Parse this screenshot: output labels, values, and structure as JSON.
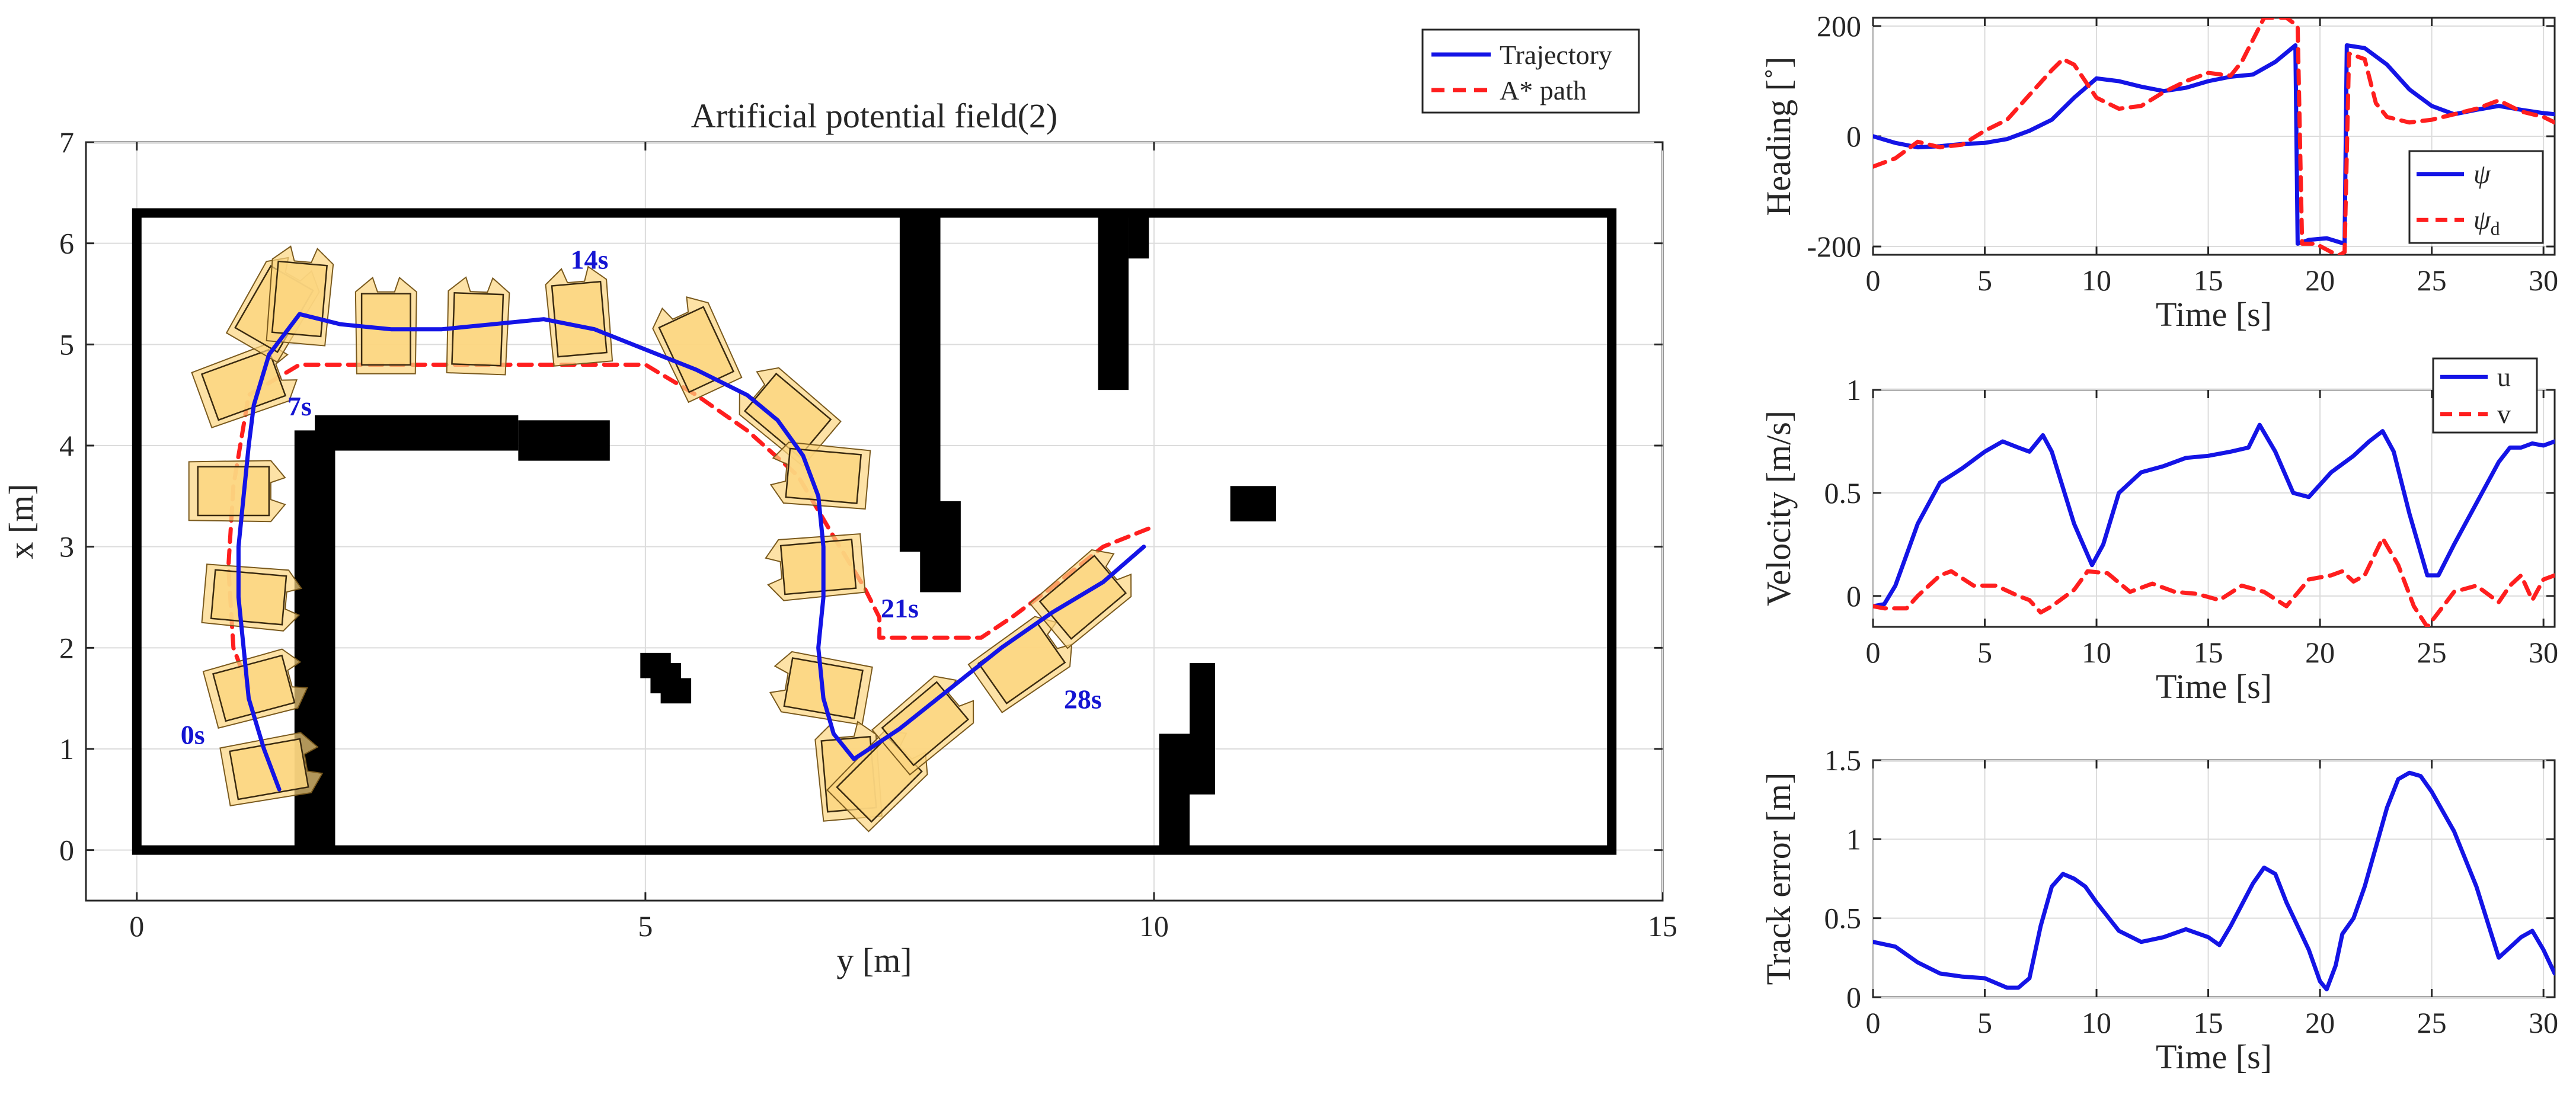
{
  "chart_data": [
    {
      "type": "map",
      "title": "Artificial potential field(2)",
      "xlabel": "y [m]",
      "ylabel": "x [m]",
      "xlim": [
        -0.5,
        15
      ],
      "ylim": [
        -0.5,
        7
      ],
      "xticks": [
        0,
        5,
        10,
        15
      ],
      "yticks": [
        0,
        1,
        2,
        3,
        4,
        5,
        6,
        7
      ],
      "grid": true,
      "legend": {
        "placement": "top-right-outside",
        "entries": [
          "Trajectory",
          "A* path"
        ]
      },
      "colors": {
        "trajectory": "#1414e6",
        "astar": "#ff1e1e",
        "obstacle": "#000000",
        "vessel_fill": "#fcd680",
        "vessel_edge": "#7a5a1e"
      },
      "boundary": {
        "y": [
          0,
          14.5
        ],
        "x": [
          0,
          6.3
        ]
      },
      "obstacles": [
        {
          "y0": 1.55,
          "y1": 1.95,
          "x0": 0,
          "x1": 4.15
        },
        {
          "y0": 1.75,
          "y1": 3.75,
          "x0": 3.95,
          "x1": 4.3
        },
        {
          "y0": 3.75,
          "y1": 4.65,
          "x0": 3.85,
          "x1": 4.25
        },
        {
          "y0": 7.5,
          "y1": 7.9,
          "x0": 2.95,
          "x1": 6.3
        },
        {
          "y0": 7.7,
          "y1": 8.1,
          "x0": 2.55,
          "x1": 3.45
        },
        {
          "y0": 9.45,
          "y1": 9.75,
          "x0": 4.55,
          "x1": 6.3
        },
        {
          "y0": 9.75,
          "y1": 9.95,
          "x0": 5.85,
          "x1": 6.3
        },
        {
          "y0": 4.95,
          "y1": 5.25,
          "x0": 1.7,
          "x1": 1.95
        },
        {
          "y0": 5.05,
          "y1": 5.35,
          "x0": 1.55,
          "x1": 1.85
        },
        {
          "y0": 5.15,
          "y1": 5.45,
          "x0": 1.45,
          "x1": 1.7
        },
        {
          "y0": 10.35,
          "y1": 10.6,
          "x0": 0.55,
          "x1": 1.85
        },
        {
          "y0": 10.05,
          "y1": 10.35,
          "x0": 0,
          "x1": 1.15
        },
        {
          "y0": 10.75,
          "y1": 11.2,
          "x0": 3.25,
          "x1": 3.6
        }
      ],
      "trajectory": {
        "y": [
          1.4,
          1.25,
          1.1,
          1.05,
          1.0,
          1.0,
          1.05,
          1.1,
          1.15,
          1.3,
          1.6,
          2.0,
          2.5,
          3.0,
          3.5,
          4.0,
          4.5,
          5.0,
          5.5,
          6.0,
          6.3,
          6.55,
          6.7,
          6.75,
          6.75,
          6.7,
          6.75,
          6.85,
          7.05,
          7.5,
          8.0,
          8.5,
          9.0,
          9.5,
          9.9
        ],
        "x": [
          0.6,
          1.0,
          1.5,
          2.0,
          2.5,
          3.0,
          3.5,
          4.0,
          4.4,
          4.9,
          5.3,
          5.2,
          5.15,
          5.15,
          5.2,
          5.25,
          5.15,
          4.95,
          4.75,
          4.5,
          4.25,
          3.9,
          3.5,
          3.0,
          2.5,
          2.0,
          1.5,
          1.15,
          0.9,
          1.2,
          1.6,
          2.0,
          2.35,
          2.65,
          3.0
        ]
      },
      "astar_path": {
        "y": [
          1.1,
          0.95,
          0.9,
          0.95,
          1.1,
          1.6,
          2.5,
          3.5,
          4.5,
          5.0,
          5.5,
          6.0,
          6.5,
          6.85,
          7.15,
          7.3,
          7.3,
          8.3,
          8.6,
          9.0,
          9.5,
          10.0
        ],
        "x": [
          1.6,
          2.0,
          2.8,
          3.6,
          4.5,
          4.8,
          4.8,
          4.8,
          4.8,
          4.8,
          4.5,
          4.15,
          3.7,
          3.1,
          2.6,
          2.3,
          2.1,
          2.1,
          2.3,
          2.6,
          3.0,
          3.2
        ]
      },
      "vessels": [
        {
          "y": 1.3,
          "x": 0.8,
          "psi": 10
        },
        {
          "y": 1.15,
          "x": 1.6,
          "psi": 15
        },
        {
          "y": 1.1,
          "x": 2.5,
          "psi": -5
        },
        {
          "y": 0.95,
          "x": 3.55,
          "psi": 0
        },
        {
          "y": 1.05,
          "x": 4.6,
          "psi": 20
        },
        {
          "y": 1.35,
          "x": 5.35,
          "psi": 60
        },
        {
          "y": 1.6,
          "x": 5.45,
          "psi": 85
        },
        {
          "y": 2.45,
          "x": 5.15,
          "psi": 90
        },
        {
          "y": 3.35,
          "x": 5.15,
          "psi": 88
        },
        {
          "y": 4.35,
          "x": 5.25,
          "psi": 95
        },
        {
          "y": 5.5,
          "x": 4.95,
          "psi": 115
        },
        {
          "y": 6.4,
          "x": 4.3,
          "psi": 140
        },
        {
          "y": 6.75,
          "x": 3.7,
          "psi": 175
        },
        {
          "y": 6.7,
          "x": 2.8,
          "psi": 185
        },
        {
          "y": 6.75,
          "x": 1.6,
          "psi": 170
        },
        {
          "y": 7.0,
          "x": 0.75,
          "psi": 95
        },
        {
          "y": 7.3,
          "x": 0.7,
          "psi": 45
        },
        {
          "y": 7.75,
          "x": 1.25,
          "psi": 40
        },
        {
          "y": 8.7,
          "x": 1.85,
          "psi": 35
        },
        {
          "y": 9.3,
          "x": 2.5,
          "psi": 40
        }
      ],
      "annotations": [
        {
          "text": "0s",
          "y": 0.55,
          "x": 1.05
        },
        {
          "text": "7s",
          "y": 1.6,
          "x": 4.3
        },
        {
          "text": "14s",
          "y": 4.45,
          "x": 5.75
        },
        {
          "text": "21s",
          "y": 7.5,
          "x": 2.3
        },
        {
          "text": "28s",
          "y": 9.3,
          "x": 1.4
        }
      ]
    },
    {
      "type": "line",
      "xlabel": "Time [s]",
      "ylabel": "Heading [˚]",
      "xlim": [
        0,
        30.5
      ],
      "ylim": [
        -215,
        215
      ],
      "xticks": [
        0,
        5,
        10,
        15,
        20,
        25,
        30
      ],
      "yticks": [
        -200,
        0,
        200
      ],
      "grid": true,
      "legend": {
        "placement": "bottom-right",
        "entries": [
          "ψ",
          "ψ_d"
        ]
      },
      "series": [
        {
          "name": "ψ",
          "color": "#1414e6",
          "style": "solid",
          "x": [
            0,
            1,
            2,
            3,
            4,
            5,
            6,
            7,
            8,
            9,
            10,
            11,
            12,
            13,
            14,
            15,
            16,
            17,
            18,
            18.9,
            19.0,
            19.5,
            20.3,
            21.1,
            21.2,
            22,
            23,
            24,
            25,
            26,
            27,
            28,
            29,
            30,
            30.5
          ],
          "y": [
            0,
            -12,
            -20,
            -18,
            -14,
            -12,
            -5,
            10,
            30,
            70,
            105,
            100,
            90,
            82,
            88,
            100,
            108,
            112,
            135,
            165,
            -195,
            -188,
            -185,
            -195,
            165,
            160,
            130,
            85,
            55,
            40,
            48,
            55,
            48,
            42,
            40
          ]
        },
        {
          "name": "ψ_d",
          "color": "#ff1e1e",
          "style": "dashed",
          "x": [
            0,
            1,
            2,
            3,
            4,
            5,
            6,
            7,
            8,
            8.5,
            9,
            10,
            11,
            12,
            13,
            14,
            15,
            16,
            16.5,
            17.5,
            18.5,
            19.0,
            19.2,
            19.8,
            20.5,
            20.9,
            21.1,
            21.3,
            22,
            22.5,
            23,
            24,
            25,
            26,
            27,
            28,
            29,
            30,
            30.5
          ],
          "y": [
            -55,
            -40,
            -10,
            -20,
            -15,
            10,
            30,
            75,
            120,
            140,
            130,
            70,
            50,
            55,
            80,
            100,
            115,
            110,
            135,
            215,
            215,
            200,
            -195,
            -195,
            -210,
            -215,
            -210,
            150,
            140,
            60,
            35,
            25,
            30,
            40,
            50,
            65,
            45,
            35,
            25
          ]
        }
      ]
    },
    {
      "type": "line",
      "xlabel": "Time [s]",
      "ylabel": "Velocity [m/s]",
      "xlim": [
        0,
        30.5
      ],
      "ylim": [
        -0.15,
        1
      ],
      "xticks": [
        0,
        5,
        10,
        15,
        20,
        25,
        30
      ],
      "yticks": [
        0,
        0.5,
        1
      ],
      "grid": true,
      "legend": {
        "placement": "top-right",
        "entries": [
          "u",
          "v"
        ]
      },
      "series": [
        {
          "name": "u",
          "color": "#1414e6",
          "style": "solid",
          "x": [
            0,
            0.5,
            1,
            1.5,
            2,
            3,
            4,
            5,
            5.8,
            6.5,
            7,
            7.6,
            8,
            9,
            9.8,
            10.3,
            11,
            12,
            13,
            14,
            15,
            16,
            16.8,
            17.3,
            18,
            18.8,
            19.5,
            20.5,
            21.5,
            22.2,
            22.8,
            23.3,
            24,
            24.8,
            25.3,
            26,
            27,
            28,
            28.5,
            29,
            29.5,
            30,
            30.5
          ],
          "y": [
            -0.05,
            -0.04,
            0.05,
            0.2,
            0.35,
            0.55,
            0.62,
            0.7,
            0.75,
            0.72,
            0.7,
            0.78,
            0.7,
            0.35,
            0.15,
            0.25,
            0.5,
            0.6,
            0.63,
            0.67,
            0.68,
            0.7,
            0.72,
            0.83,
            0.7,
            0.5,
            0.48,
            0.6,
            0.68,
            0.75,
            0.8,
            0.7,
            0.4,
            0.1,
            0.1,
            0.25,
            0.45,
            0.65,
            0.72,
            0.72,
            0.74,
            0.73,
            0.75
          ]
        },
        {
          "name": "v",
          "color": "#ff1e1e",
          "style": "dashed",
          "x": [
            0,
            0.5,
            1,
            1.5,
            2,
            3,
            3.5,
            4.5,
            5.5,
            6.5,
            7,
            7.5,
            8,
            9,
            9.6,
            10.5,
            11.5,
            12.5,
            13.5,
            14.5,
            15.5,
            16.5,
            17.5,
            18.5,
            19.5,
            20.5,
            21,
            21.5,
            22,
            22.8,
            23.5,
            24.2,
            24.8,
            25.3,
            26,
            27,
            28,
            28.5,
            29,
            29.5,
            30,
            30.5
          ],
          "y": [
            -0.05,
            -0.06,
            -0.06,
            -0.06,
            0,
            0.1,
            0.12,
            0.05,
            0.05,
            0,
            -0.02,
            -0.08,
            -0.05,
            0.03,
            0.12,
            0.11,
            0.02,
            0.06,
            0.02,
            0.01,
            -0.02,
            0.05,
            0.02,
            -0.05,
            0.08,
            0.1,
            0.12,
            0.07,
            0.1,
            0.28,
            0.15,
            -0.05,
            -0.15,
            -0.08,
            0.02,
            0.05,
            -0.03,
            0.05,
            0.1,
            -0.02,
            0.08,
            0.1
          ]
        }
      ]
    },
    {
      "type": "line",
      "xlabel": "Time [s]",
      "ylabel": "Track error [m]",
      "xlim": [
        0,
        30.5
      ],
      "ylim": [
        0,
        1.5
      ],
      "xticks": [
        0,
        5,
        10,
        15,
        20,
        25,
        30
      ],
      "yticks": [
        0,
        0.5,
        1,
        1.5
      ],
      "grid": true,
      "series": [
        {
          "name": "",
          "color": "#1414e6",
          "style": "solid",
          "x": [
            0,
            1,
            2,
            3,
            4,
            5,
            6,
            6.5,
            7,
            7.5,
            8,
            8.5,
            9,
            9.5,
            10,
            11,
            12,
            13,
            14,
            15,
            15.5,
            16,
            17,
            17.5,
            18,
            18.5,
            19,
            19.5,
            20,
            20.3,
            20.7,
            21,
            21.5,
            22,
            22.5,
            23,
            23.5,
            24,
            24.5,
            25,
            26,
            27,
            28,
            29,
            29.5,
            30,
            30.5
          ],
          "y": [
            0.35,
            0.32,
            0.22,
            0.15,
            0.13,
            0.12,
            0.06,
            0.06,
            0.12,
            0.45,
            0.7,
            0.78,
            0.75,
            0.7,
            0.6,
            0.42,
            0.35,
            0.38,
            0.43,
            0.38,
            0.33,
            0.45,
            0.72,
            0.82,
            0.78,
            0.6,
            0.45,
            0.3,
            0.1,
            0.05,
            0.2,
            0.4,
            0.5,
            0.7,
            0.95,
            1.2,
            1.38,
            1.42,
            1.4,
            1.3,
            1.05,
            0.7,
            0.25,
            0.38,
            0.42,
            0.3,
            0.15
          ]
        }
      ]
    }
  ]
}
